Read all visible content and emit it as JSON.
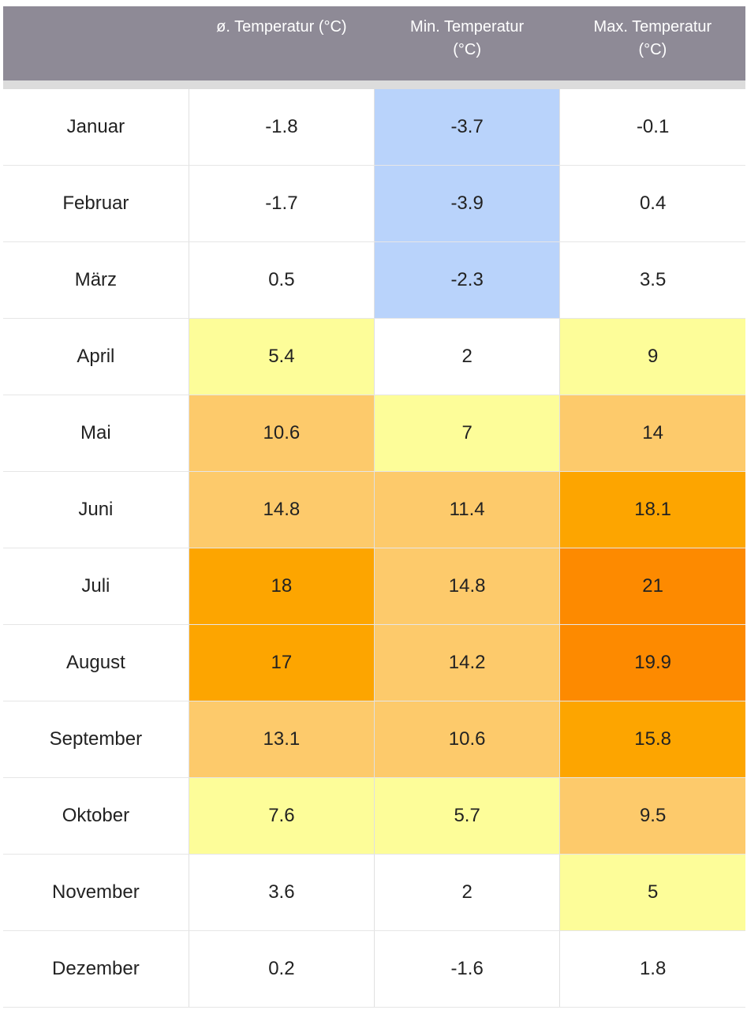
{
  "table": {
    "header": [
      "ø. Temperatur (°C)",
      "Min. Temperatur (°C)",
      "Max. Temperatur (°C)"
    ],
    "rows": [
      [
        "Januar",
        -1.8,
        -3.7,
        -0.1
      ],
      [
        "Februar",
        -1.7,
        -3.9,
        0.4
      ],
      [
        "März",
        0.5,
        -2.3,
        3.5
      ],
      [
        "April",
        5.4,
        2,
        9
      ],
      [
        "Mai",
        10.6,
        7,
        14
      ],
      [
        "Juni",
        14.8,
        11.4,
        18.1
      ],
      [
        "Juli",
        18,
        14.8,
        21
      ],
      [
        "August",
        17,
        14.2,
        19.9
      ],
      [
        "September",
        13.1,
        10.6,
        15.8
      ],
      [
        "Oktober",
        7.6,
        5.7,
        9.5
      ],
      [
        "November",
        3.6,
        2,
        5
      ],
      [
        "Dezember",
        0.2,
        -1.6,
        1.8
      ]
    ]
  }
}
